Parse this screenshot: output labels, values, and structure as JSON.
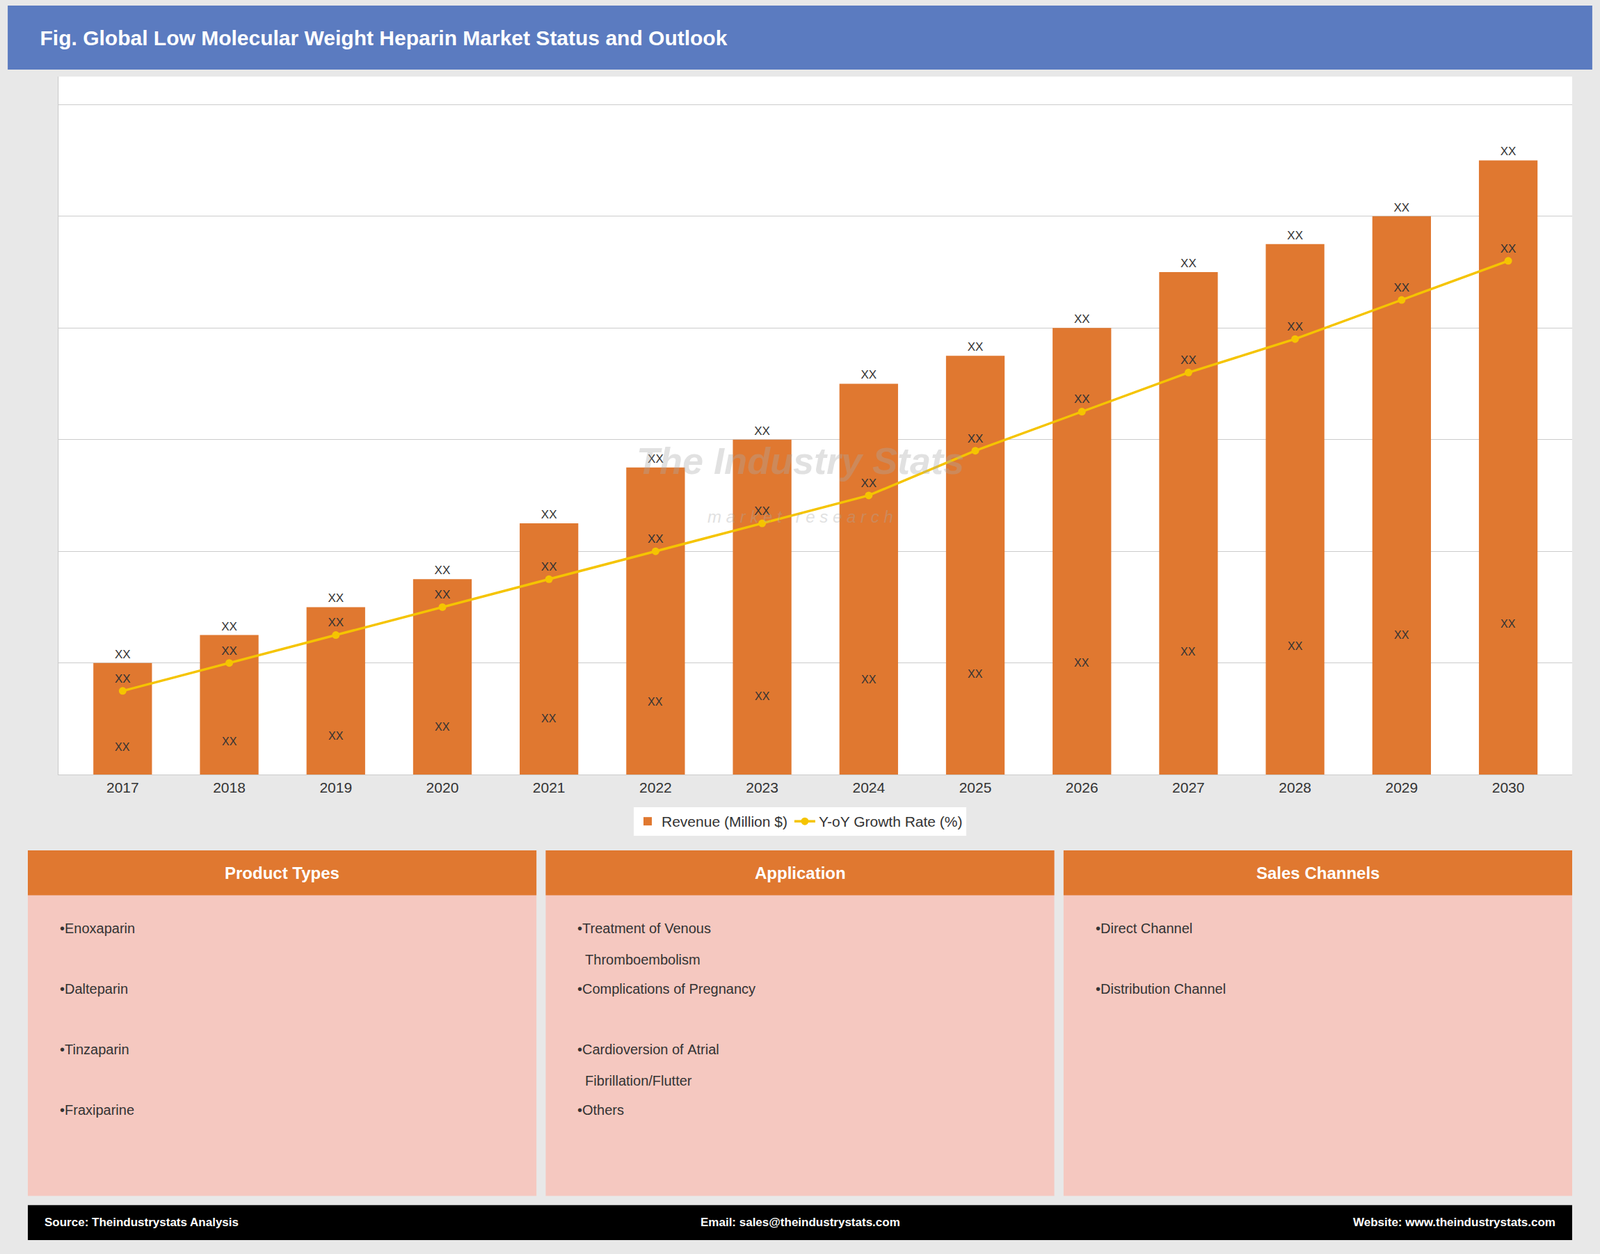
{
  "chart_data": {
    "type": "bar",
    "title": "Fig. Global Low Molecular Weight Heparin Market Status and Outlook",
    "categories": [
      "2017",
      "2018",
      "2019",
      "2020",
      "2021",
      "2022",
      "2023",
      "2024",
      "2025",
      "2026",
      "2027",
      "2028",
      "2029",
      "2030"
    ],
    "series": [
      {
        "name": "Revenue (Million $)",
        "type": "bar",
        "color": "#E07830",
        "values": [
          2.0,
          2.5,
          3.0,
          3.5,
          4.5,
          5.5,
          6.0,
          7.0,
          7.5,
          8.0,
          9.0,
          9.5,
          10.0,
          11.0
        ],
        "value_labels": [
          "XX",
          "XX",
          "XX",
          "XX",
          "XX",
          "XX",
          "XX",
          "XX",
          "XX",
          "XX",
          "XX",
          "XX",
          "XX",
          "XX"
        ]
      },
      {
        "name": "Y-oY Growth Rate (%)",
        "type": "line",
        "color": "#F5C400",
        "marker": "circle",
        "values": [
          1.5,
          2.0,
          2.5,
          3.0,
          3.5,
          4.0,
          4.5,
          5.0,
          5.8,
          6.5,
          7.2,
          7.8,
          8.5,
          9.2
        ],
        "value_labels": [
          "XX",
          "XX",
          "XX",
          "XX",
          "XX",
          "XX",
          "XX",
          "XX",
          "XX",
          "XX",
          "XX",
          "XX",
          "XX",
          "XX"
        ]
      }
    ],
    "ylim": [
      0,
      12.5
    ],
    "yticks": [
      0,
      2,
      4,
      6,
      8,
      10,
      12
    ],
    "grid": true,
    "tick_labels": "x",
    "data_labels": true,
    "legend": "bottom",
    "annotations": [
      {
        "x": "2017",
        "y": 0.5,
        "text": "XX"
      },
      {
        "x": "2018",
        "y": 0.6,
        "text": "XX"
      },
      {
        "x": "2019",
        "y": 0.7,
        "text": "XX"
      },
      {
        "x": "2020",
        "y": 0.85,
        "text": "XX"
      },
      {
        "x": "2021",
        "y": 1.0,
        "text": "XX"
      },
      {
        "x": "2022",
        "y": 1.3,
        "text": "XX"
      },
      {
        "x": "2023",
        "y": 1.4,
        "text": "XX"
      },
      {
        "x": "2024",
        "y": 1.7,
        "text": "XX"
      },
      {
        "x": "2025",
        "y": 1.8,
        "text": "XX"
      },
      {
        "x": "2026",
        "y": 2.0,
        "text": "XX"
      },
      {
        "x": "2027",
        "y": 2.2,
        "text": "XX"
      },
      {
        "x": "2028",
        "y": 2.3,
        "text": "XX"
      },
      {
        "x": "2029",
        "y": 2.5,
        "text": "XX"
      },
      {
        "x": "2030",
        "y": 2.7,
        "text": "XX"
      }
    ],
    "watermark": [
      "The Industry Stats",
      "m a r k e t   r e s e a r c h"
    ],
    "panels": [
      {
        "title": "Product Types",
        "items": [
          "•Enoxaparin",
          "•Dalteparin",
          "•Tinzaparin",
          "•Fraxiparine"
        ]
      },
      {
        "title": "Application",
        "items": [
          "•Treatment of Venous\n  Thromboembolism",
          "•Complications of Pregnancy",
          "•Cardioversion of Atrial\n  Fibrillation/Flutter",
          "•Others"
        ]
      },
      {
        "title": "Sales Channels",
        "items": [
          "•Direct Channel",
          "•Distribution Channel"
        ]
      }
    ],
    "footer": [
      "Source: Theindustrystats Analysis",
      "Email: sales@theindustrystats.com",
      "Website: www.theindustrystats.com"
    ]
  }
}
